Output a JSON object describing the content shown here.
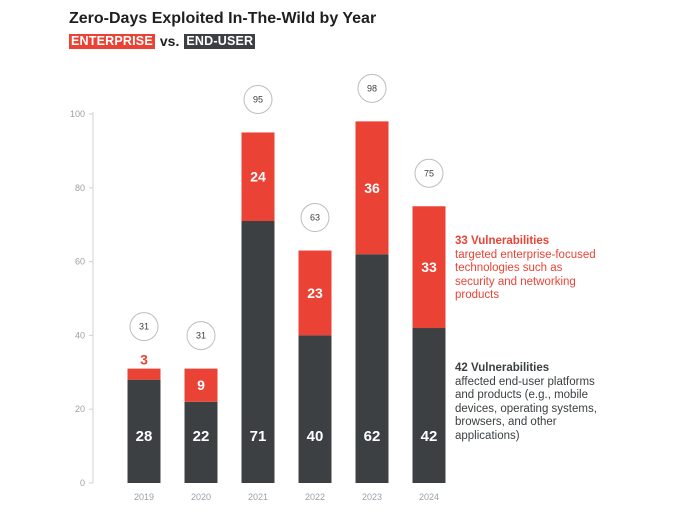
{
  "title": "Zero-Days Exploited In-The-Wild by Year",
  "subtitle": {
    "enterprise_tag": "ENTERPRISE",
    "vs": "vs.",
    "enduser_tag": "END-USER"
  },
  "colors": {
    "enterprise": "#ea4335",
    "enduser": "#3c4043",
    "axis_text": "#9aa0a6",
    "circle_border": "#bdbdbd"
  },
  "chart_data": {
    "type": "bar",
    "stacked": true,
    "categories": [
      "2019",
      "2020",
      "2021",
      "2022",
      "2023",
      "2024"
    ],
    "series": [
      {
        "name": "END-USER",
        "values": [
          28,
          22,
          71,
          40,
          62,
          42
        ]
      },
      {
        "name": "ENTERPRISE",
        "values": [
          3,
          9,
          24,
          23,
          36,
          33
        ]
      }
    ],
    "totals": [
      31,
      31,
      95,
      63,
      98,
      75
    ],
    "yticks": [
      0,
      20,
      40,
      60,
      80,
      100
    ],
    "ylim": [
      0,
      100
    ],
    "grid": false
  },
  "annotations": {
    "enterprise": {
      "head": "33 Vulnerabilities",
      "body": "targeted enterprise-focused technologies such as security and networking products"
    },
    "enduser": {
      "head": "42 Vulnerabilities",
      "body": "affected end-user platforms and products (e.g., mobile devices, operating systems, browsers, and other applications)"
    }
  }
}
